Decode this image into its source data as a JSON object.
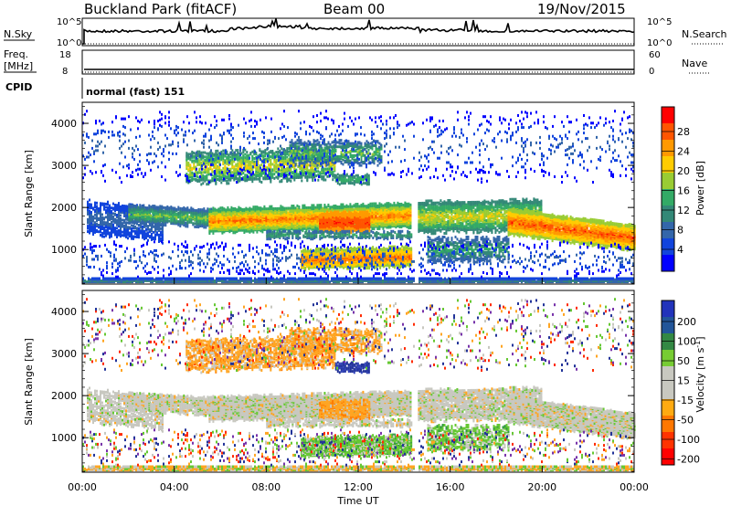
{
  "header": {
    "station": "Buckland Park (fitACF)",
    "beam": "Beam 00",
    "date": "19/Nov/2015"
  },
  "nsky_panel": {
    "left_label": "N.Sky",
    "right_label": "N.Search",
    "left_ticks": [
      "10^5",
      "10^0"
    ],
    "right_ticks": [
      "10^5",
      "10^0"
    ]
  },
  "freq_panel": {
    "left_label_1": "Freq.",
    "left_label_2": "[MHz]",
    "right_label": "Nave",
    "left_ticks": [
      "18",
      "8"
    ],
    "right_ticks": [
      "60",
      "0"
    ]
  },
  "cpid": {
    "label": "CPID",
    "value": "normal (fast) 151"
  },
  "chart_data": [
    {
      "type": "heatmap",
      "name": "power",
      "ylabel": "Slant Range [km]",
      "xlabel": "",
      "x_range_hours": [
        0,
        24
      ],
      "ylim": [
        180,
        4500
      ],
      "y_ticks": [
        "1000",
        "2000",
        "3000",
        "4000"
      ],
      "colorbar": {
        "label": "Power [dB]",
        "ticks": [
          "28",
          "24",
          "20",
          "16",
          "12",
          "8",
          "4"
        ],
        "colors": [
          "#ff0000",
          "#ff5500",
          "#ff9900",
          "#ffcc00",
          "#99cc33",
          "#33aa66",
          "#338877",
          "#3366aa",
          "#1144dd",
          "#0000ff"
        ]
      }
    },
    {
      "type": "heatmap",
      "name": "velocity",
      "ylabel": "Slant Range [km]",
      "xlabel": "Time UT",
      "x_range_hours": [
        0,
        24
      ],
      "ylim": [
        180,
        4500
      ],
      "y_ticks": [
        "1000",
        "2000",
        "3000",
        "4000"
      ],
      "x_ticks": [
        "00:00",
        "04:00",
        "08:00",
        "12:00",
        "16:00",
        "20:00",
        "00:00"
      ],
      "colorbar": {
        "label_main": "Velocity [m s",
        "label_sup": "-1",
        "label_end": "]",
        "ticks": [
          "200",
          "100",
          "50",
          "15",
          "-15",
          "-50",
          "-100",
          "-200"
        ],
        "colors": [
          "#2233bb",
          "#225599",
          "#338844",
          "#77cc33",
          "#c8c8c0",
          "#c8c8c0",
          "#ffaa11",
          "#ff7700",
          "#ff3300",
          "#ff0000"
        ]
      }
    }
  ]
}
